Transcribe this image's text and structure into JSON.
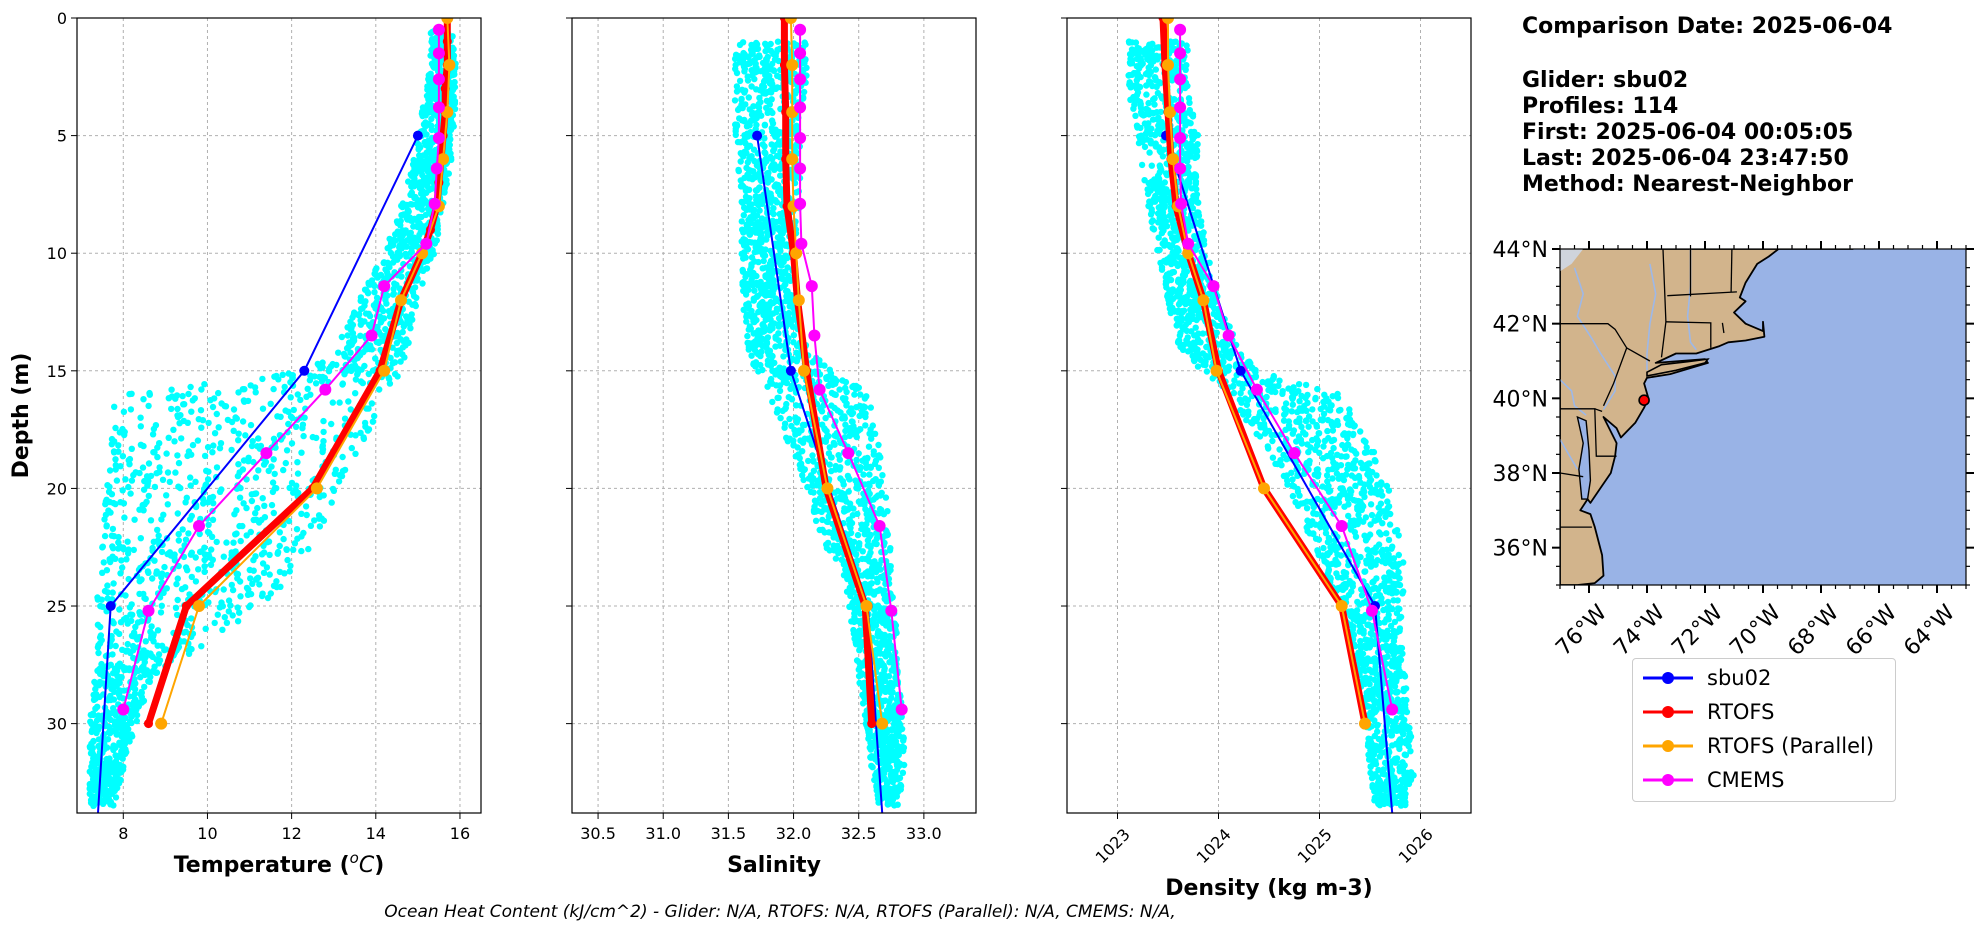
{
  "info": {
    "date_line": "Comparison Date: 2025-06-04",
    "glider_line": "Glider: sbu02",
    "profiles_line": "Profiles: 114",
    "first_line": "First: 2025-06-04 00:05:05",
    "last_line": "Last: 2025-06-04 23:47:50",
    "method_line": "Method: Nearest-Neighbor"
  },
  "footer": "Ocean Heat Content (kJ/cm^2) - Glider: N/A,  RTOFS: N/A,  RTOFS (Parallel): N/A,  CMEMS: N/A,",
  "colors": {
    "glider_scatter": "#00ffff",
    "sbu02": "#0000ff",
    "RTOFS": "#ff0000",
    "RTOFS_parallel": "#ffa500",
    "CMEMS": "#ff00ff",
    "land": "#d2b48c",
    "ocean": "#99b3e6",
    "rivers": "#9db8e8"
  },
  "legend": [
    "sbu02",
    "RTOFS",
    "RTOFS (Parallel)",
    "CMEMS"
  ],
  "chart_data": [
    {
      "type": "line",
      "panel": "temperature",
      "xlabel": "Temperature (°C)",
      "ylabel": "Depth (m)",
      "xlim": [
        6.9,
        16.5
      ],
      "ylim": [
        33.8,
        0
      ],
      "xticks": [
        8,
        10,
        12,
        14,
        16
      ],
      "yticks": [
        0,
        5,
        10,
        15,
        20,
        25,
        30
      ],
      "grid": true,
      "scatter_envelope": {
        "name": "glider profiles",
        "depth": [
          0.5,
          2,
          4,
          6,
          8,
          10,
          12,
          14,
          15,
          16,
          18,
          20,
          22,
          24,
          26,
          28,
          30,
          32,
          33.5
        ],
        "min": [
          15.3,
          15.3,
          15.1,
          14.9,
          14.6,
          14.2,
          13.6,
          13.0,
          12.4,
          7.8,
          7.7,
          7.6,
          7.5,
          7.4,
          7.35,
          7.3,
          7.2,
          7.2,
          7.2
        ],
        "max": [
          15.9,
          15.9,
          15.9,
          15.8,
          15.6,
          15.4,
          15.0,
          14.8,
          14.6,
          14.3,
          13.7,
          13.2,
          12.6,
          11.9,
          10.5,
          8.7,
          8.3,
          8.0,
          7.8
        ]
      },
      "series": [
        {
          "name": "sbu02",
          "depth": [
            5,
            15,
            25,
            33.8
          ],
          "values": [
            15.0,
            12.3,
            7.7,
            7.4
          ]
        },
        {
          "name": "RTOFS",
          "depth": [
            0,
            1,
            2,
            3,
            4,
            5,
            6,
            7,
            8,
            9,
            10,
            12,
            15,
            20,
            25,
            30
          ],
          "values": [
            15.7,
            15.7,
            15.7,
            15.65,
            15.65,
            15.6,
            15.55,
            15.5,
            15.45,
            15.3,
            15.1,
            14.6,
            14.1,
            12.5,
            9.5,
            8.6
          ]
        },
        {
          "name": "RTOFS (Parallel)",
          "depth": [
            0,
            2,
            4,
            6,
            8,
            10,
            12,
            15,
            20,
            25,
            30
          ],
          "values": [
            15.7,
            15.75,
            15.7,
            15.6,
            15.5,
            15.1,
            14.6,
            14.2,
            12.6,
            9.8,
            8.9
          ]
        },
        {
          "name": "CMEMS",
          "depth": [
            0.5,
            1.5,
            2.6,
            3.8,
            5.1,
            6.4,
            7.9,
            9.6,
            11.4,
            13.5,
            15.8,
            18.5,
            21.6,
            25.2,
            29.4
          ],
          "values": [
            15.5,
            15.5,
            15.5,
            15.5,
            15.5,
            15.45,
            15.4,
            15.2,
            14.2,
            13.9,
            12.8,
            11.4,
            9.8,
            8.6,
            8.0
          ]
        }
      ]
    },
    {
      "type": "line",
      "panel": "salinity",
      "xlabel": "Salinity",
      "xlim": [
        30.3,
        33.4
      ],
      "ylim": [
        33.8,
        0
      ],
      "xticks": [
        30.5,
        31.0,
        31.5,
        32.0,
        32.5,
        33.0
      ],
      "xtick_labels": [
        "30.5",
        "31.0",
        "31.5",
        "32.0",
        "32.5",
        "33.0"
      ],
      "grid": true,
      "scatter_envelope": {
        "name": "glider profiles",
        "depth": [
          1,
          3,
          5,
          8,
          10,
          12,
          14,
          15,
          16,
          18,
          20,
          22,
          24,
          26,
          28,
          30,
          32,
          33.5
        ],
        "min": [
          31.55,
          31.55,
          31.55,
          31.6,
          31.6,
          31.6,
          31.65,
          31.7,
          31.8,
          31.95,
          32.1,
          32.2,
          32.4,
          32.45,
          32.5,
          32.55,
          32.6,
          32.65
        ],
        "max": [
          32.1,
          32.1,
          32.05,
          32.05,
          32.0,
          32.0,
          32.1,
          32.3,
          32.6,
          32.65,
          32.7,
          32.75,
          32.75,
          32.8,
          32.8,
          32.85,
          32.85,
          32.8
        ]
      },
      "series": [
        {
          "name": "sbu02",
          "depth": [
            5,
            15,
            25,
            33.8
          ],
          "values": [
            31.72,
            31.98,
            32.57,
            32.68
          ]
        },
        {
          "name": "RTOFS",
          "depth": [
            0,
            2,
            4,
            6,
            8,
            10,
            12,
            15,
            20,
            25,
            30
          ],
          "values": [
            31.93,
            31.93,
            31.94,
            31.94,
            31.95,
            32.0,
            32.03,
            32.1,
            32.25,
            32.55,
            32.6
          ]
        },
        {
          "name": "RTOFS (Parallel)",
          "depth": [
            0,
            2,
            4,
            6,
            8,
            10,
            12,
            15,
            20,
            25,
            30
          ],
          "values": [
            31.98,
            31.99,
            31.99,
            31.99,
            32.0,
            32.02,
            32.04,
            32.08,
            32.26,
            32.56,
            32.68
          ]
        },
        {
          "name": "CMEMS",
          "depth": [
            0.5,
            1.5,
            2.6,
            3.8,
            5.1,
            6.4,
            7.9,
            9.6,
            11.4,
            13.5,
            15.8,
            18.5,
            21.6,
            25.2,
            29.4
          ],
          "values": [
            32.05,
            32.05,
            32.05,
            32.05,
            32.05,
            32.05,
            32.05,
            32.06,
            32.14,
            32.16,
            32.2,
            32.42,
            32.66,
            32.75,
            32.83
          ]
        }
      ]
    },
    {
      "type": "line",
      "panel": "density",
      "xlabel": "Density (kg m-3)",
      "xlim": [
        1022.5,
        1026.5
      ],
      "ylim": [
        33.8,
        0
      ],
      "xticks": [
        1023,
        1024,
        1025,
        1026
      ],
      "grid": true,
      "scatter_envelope": {
        "name": "glider profiles",
        "depth": [
          1,
          3,
          5,
          8,
          10,
          12,
          14,
          15,
          16,
          18,
          20,
          22,
          24,
          26,
          28,
          30,
          32,
          33.5
        ],
        "min": [
          23.1,
          23.1,
          23.2,
          23.3,
          23.4,
          23.5,
          23.6,
          23.8,
          24.1,
          24.4,
          24.7,
          24.9,
          25.1,
          25.3,
          25.4,
          25.45,
          25.5,
          25.55
        ],
        "max": [
          23.7,
          23.7,
          23.8,
          23.8,
          23.9,
          24.0,
          24.2,
          24.4,
          25.2,
          25.5,
          25.7,
          25.8,
          25.85,
          25.8,
          25.85,
          25.9,
          25.95,
          25.85
        ]
      },
      "series": [
        {
          "name": "sbu02",
          "depth": [
            5,
            15,
            25,
            33.8
          ],
          "values": [
            1023.48,
            1024.22,
            1025.55,
            1025.72
          ]
        },
        {
          "name": "RTOFS",
          "depth": [
            0,
            2,
            4,
            6,
            8,
            10,
            12,
            15,
            20,
            25,
            30
          ],
          "values": [
            1023.45,
            1023.47,
            1023.5,
            1023.53,
            1023.58,
            1023.7,
            1023.85,
            1024.0,
            1024.45,
            1025.22,
            1025.45
          ]
        },
        {
          "name": "RTOFS (Parallel)",
          "depth": [
            0,
            2,
            4,
            6,
            8,
            10,
            12,
            15,
            20,
            25,
            30
          ],
          "values": [
            1023.5,
            1023.5,
            1023.52,
            1023.55,
            1023.6,
            1023.7,
            1023.85,
            1023.98,
            1024.45,
            1025.22,
            1025.45
          ]
        },
        {
          "name": "CMEMS",
          "depth": [
            0.5,
            1.5,
            2.6,
            3.8,
            5.1,
            6.4,
            7.9,
            9.6,
            11.4,
            13.5,
            15.8,
            18.5,
            21.6,
            25.2,
            29.4
          ],
          "values": [
            1023.62,
            1023.62,
            1023.62,
            1023.62,
            1023.62,
            1023.62,
            1023.63,
            1023.7,
            1023.95,
            1024.1,
            1024.38,
            1024.75,
            1025.22,
            1025.52,
            1025.72
          ]
        }
      ]
    },
    {
      "type": "map",
      "panel": "location-map",
      "lon_range": [
        -77,
        -63
      ],
      "lat_range": [
        35,
        44
      ],
      "lon_ticks": [
        -76,
        -74,
        -72,
        -70,
        -68,
        -66,
        -64
      ],
      "lon_labels": [
        "76°W",
        "74°W",
        "72°W",
        "70°W",
        "68°W",
        "66°W",
        "64°W"
      ],
      "lat_ticks": [
        36,
        38,
        40,
        42,
        44
      ],
      "lat_labels": [
        "36°N",
        "38°N",
        "40°N",
        "42°N",
        "44°N"
      ],
      "glider_location": {
        "lon": -74.1,
        "lat": 39.95
      }
    }
  ]
}
